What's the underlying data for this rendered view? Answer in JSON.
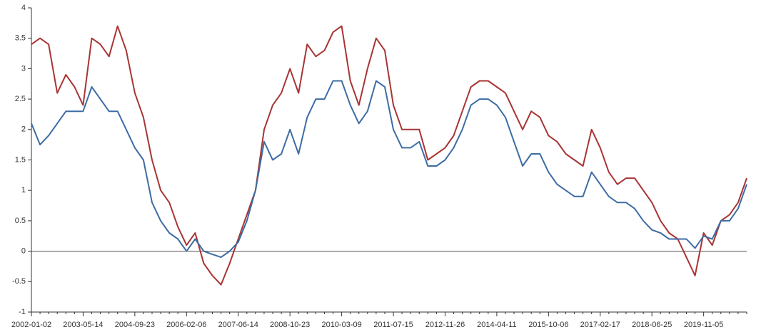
{
  "chart_data": {
    "type": "line",
    "categories": [
      "2002-01-02",
      null,
      null,
      null,
      null,
      null,
      "2003-05-14",
      null,
      null,
      null,
      null,
      null,
      "2004-09-23",
      null,
      null,
      null,
      null,
      null,
      "2006-02-06",
      null,
      null,
      null,
      null,
      null,
      "2007-06-14",
      null,
      null,
      null,
      null,
      null,
      "2008-10-23",
      null,
      null,
      null,
      null,
      null,
      "2010-03-09",
      null,
      null,
      null,
      null,
      null,
      "2011-07-15",
      null,
      null,
      null,
      null,
      null,
      "2012-11-26",
      null,
      null,
      null,
      null,
      null,
      "2014-04-11",
      null,
      null,
      null,
      null,
      null,
      "2015-10-06",
      null,
      null,
      null,
      null,
      null,
      "2017-02-17",
      null,
      null,
      null,
      null,
      null,
      "2018-06-25",
      null,
      null,
      null,
      null,
      null,
      "2019-11-05",
      null,
      null,
      null,
      null,
      null
    ],
    "series": [
      {
        "color": "#a83434",
        "values": [
          3.4,
          3.5,
          3.4,
          2.6,
          2.9,
          2.7,
          2.4,
          3.5,
          3.4,
          3.2,
          3.7,
          3.3,
          2.6,
          2.2,
          1.5,
          1.0,
          0.8,
          0.4,
          0.1,
          0.3,
          -0.2,
          -0.4,
          -0.55,
          -0.2,
          0.2,
          0.6,
          1.0,
          2.0,
          2.4,
          2.6,
          3.0,
          2.6,
          3.4,
          3.2,
          3.3,
          3.6,
          3.7,
          2.8,
          2.4,
          3.0,
          3.5,
          3.3,
          2.4,
          2.0,
          2.0,
          2.0,
          1.5,
          1.6,
          1.7,
          1.9,
          2.3,
          2.7,
          2.8,
          2.8,
          2.7,
          2.6,
          2.3,
          2.0,
          2.3,
          2.2,
          1.9,
          1.8,
          1.6,
          1.5,
          1.4,
          2.0,
          1.7,
          1.3,
          1.1,
          1.2,
          1.2,
          1.0,
          0.8,
          0.5,
          0.3,
          0.2,
          -0.1,
          -0.4,
          0.3,
          0.1,
          0.5,
          0.6,
          0.8,
          1.2
        ]
      },
      {
        "color": "#3d6ca4",
        "values": [
          2.1,
          1.75,
          1.9,
          2.1,
          2.3,
          2.3,
          2.3,
          2.7,
          2.5,
          2.3,
          2.3,
          2.0,
          1.7,
          1.5,
          0.8,
          0.5,
          0.3,
          0.2,
          0.0,
          0.2,
          0.0,
          -0.05,
          -0.1,
          0.0,
          0.15,
          0.5,
          1.0,
          1.8,
          1.5,
          1.6,
          2.0,
          1.6,
          2.2,
          2.5,
          2.5,
          2.8,
          2.8,
          2.4,
          2.1,
          2.3,
          2.8,
          2.7,
          2.0,
          1.7,
          1.7,
          1.8,
          1.4,
          1.4,
          1.5,
          1.7,
          2.0,
          2.4,
          2.5,
          2.5,
          2.4,
          2.2,
          1.8,
          1.4,
          1.6,
          1.6,
          1.3,
          1.1,
          1.0,
          0.9,
          0.9,
          1.3,
          1.1,
          0.9,
          0.8,
          0.8,
          0.7,
          0.5,
          0.35,
          0.3,
          0.2,
          0.2,
          0.2,
          0.05,
          0.25,
          0.2,
          0.5,
          0.5,
          0.7,
          1.1
        ]
      }
    ],
    "ylim": [
      -1,
      4
    ],
    "yticks": [
      -1,
      -0.5,
      0,
      0.5,
      1,
      1.5,
      2,
      2.5,
      3,
      3.5,
      4
    ],
    "grid": false
  }
}
